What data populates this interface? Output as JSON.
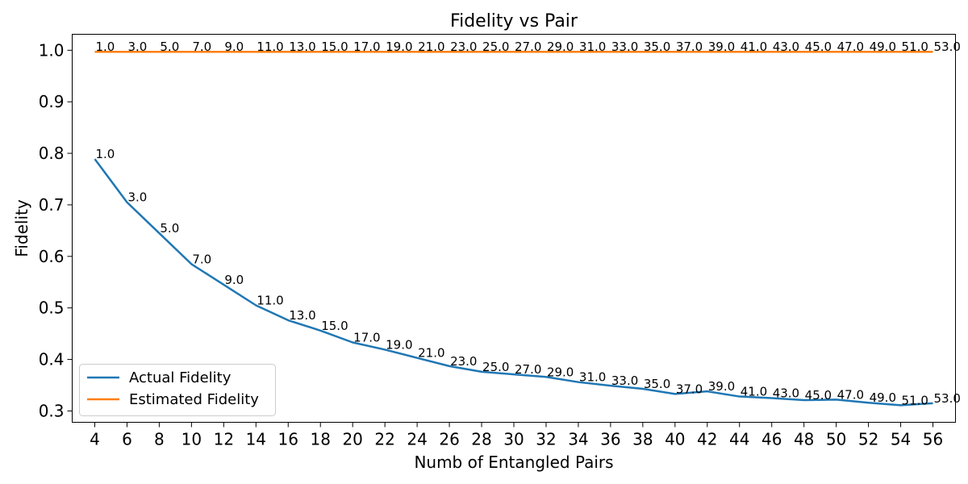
{
  "chart_data": {
    "type": "line",
    "title": "Fidelity vs Pair",
    "xlabel": "Numb of Entangled Pairs",
    "ylabel": "Fidelity",
    "x": [
      4,
      6,
      8,
      10,
      12,
      14,
      16,
      18,
      20,
      22,
      24,
      26,
      28,
      30,
      32,
      34,
      36,
      38,
      40,
      42,
      44,
      46,
      48,
      50,
      52,
      54,
      56
    ],
    "xticks": [
      "4",
      "6",
      "8",
      "10",
      "12",
      "14",
      "16",
      "18",
      "20",
      "22",
      "24",
      "26",
      "28",
      "30",
      "32",
      "34",
      "36",
      "38",
      "40",
      "42",
      "44",
      "46",
      "48",
      "50",
      "52",
      "54",
      "56"
    ],
    "yticks": [
      "0.3",
      "0.4",
      "0.5",
      "0.6",
      "0.7",
      "0.8",
      "0.9",
      "1.0"
    ],
    "ylim": [
      0.278,
      1.031
    ],
    "xlim": [
      2.6,
      57.4
    ],
    "grid": false,
    "legend_position": "lower-left",
    "series": [
      {
        "name": "Actual Fidelity",
        "color": "#1f77b4",
        "values": [
          0.789,
          0.705,
          0.645,
          0.585,
          0.545,
          0.505,
          0.476,
          0.456,
          0.433,
          0.419,
          0.403,
          0.387,
          0.376,
          0.371,
          0.366,
          0.356,
          0.349,
          0.343,
          0.333,
          0.338,
          0.328,
          0.325,
          0.321,
          0.322,
          0.316,
          0.311,
          0.315
        ],
        "labels": [
          "1.0",
          "3.0",
          "5.0",
          "7.0",
          "9.0",
          "11.0",
          "13.0",
          "15.0",
          "17.0",
          "19.0",
          "21.0",
          "23.0",
          "25.0",
          "27.0",
          "29.0",
          "31.0",
          "33.0",
          "35.0",
          "37.0",
          "39.0",
          "41.0",
          "43.0",
          "45.0",
          "47.0",
          "49.0",
          "51.0",
          "53.0"
        ]
      },
      {
        "name": "Estimated Fidelity",
        "color": "#ff7f0e",
        "values": [
          0.997,
          0.997,
          0.997,
          0.997,
          0.997,
          0.997,
          0.997,
          0.997,
          0.997,
          0.997,
          0.997,
          0.997,
          0.997,
          0.997,
          0.997,
          0.997,
          0.997,
          0.997,
          0.997,
          0.997,
          0.997,
          0.997,
          0.997,
          0.997,
          0.997,
          0.997,
          0.997
        ],
        "labels": [
          "1.0",
          "3.0",
          "5.0",
          "7.0",
          "9.0",
          "11.0",
          "13.0",
          "15.0",
          "17.0",
          "19.0",
          "21.0",
          "23.0",
          "25.0",
          "27.0",
          "29.0",
          "31.0",
          "33.0",
          "35.0",
          "37.0",
          "39.0",
          "41.0",
          "43.0",
          "45.0",
          "47.0",
          "49.0",
          "51.0",
          "53.0"
        ]
      }
    ]
  }
}
